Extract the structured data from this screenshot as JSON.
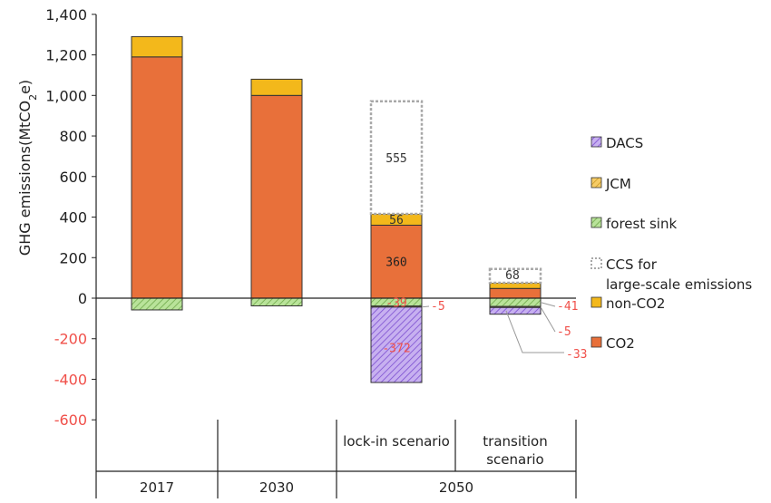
{
  "chart_data": {
    "type": "bar",
    "stacked": true,
    "ylabel": "GHG emissions(MtCO",
    "ylabel_sub": "2",
    "ylabel_end": "e)",
    "ylim": [
      -600,
      1400
    ],
    "yticks": [
      -600,
      -400,
      -200,
      0,
      200,
      400,
      600,
      800,
      1000,
      1200,
      1400
    ],
    "ytick_labels": [
      "-600",
      "-400",
      "-200",
      "0",
      "200",
      "400",
      "600",
      "800",
      "1,000",
      "1,200",
      "1,400"
    ],
    "columns": [
      {
        "key": "2017",
        "year": "2017",
        "scenario": ""
      },
      {
        "key": "2030",
        "year": "2030",
        "scenario": ""
      },
      {
        "key": "2050-lockin",
        "year": "2050",
        "scenario": "lock-in scenario"
      },
      {
        "key": "2050-transition",
        "year": "2050",
        "scenario": "transition scenario"
      }
    ],
    "year_labels": [
      "2017",
      "2030",
      "2050"
    ],
    "scenario_labels": [
      "lock-in scenario",
      "transition scenario"
    ],
    "series": [
      {
        "name": "CO2",
        "color": "#E8703A",
        "values": [
          1190,
          1000,
          360,
          48
        ]
      },
      {
        "name": "non-CO2",
        "color": "#F3B81B",
        "values": [
          100,
          80,
          56,
          28
        ]
      },
      {
        "name": "CCS for large-scale emissions",
        "color": "#ffffff",
        "outline": "#aaaaaa",
        "values": [
          0,
          0,
          555,
          68
        ]
      },
      {
        "name": "forest sink",
        "color": "#A6D97A",
        "values": [
          -58,
          -38,
          -39,
          -41
        ]
      },
      {
        "name": "JCM",
        "color": "#F3C14A",
        "values": [
          0,
          0,
          -5,
          -5
        ]
      },
      {
        "name": "DACS",
        "color": "#A17ADB",
        "values": [
          0,
          0,
          -372,
          -33
        ]
      }
    ],
    "data_labels": {
      "co2_lockin": "360",
      "nonco2_lockin": "56",
      "ccs_lockin": "555",
      "ccs_transition": "68",
      "forest_lockin": "-39",
      "jcm_lockin": "-5",
      "dacs_lockin": "-372",
      "forest_transition": "-41",
      "jcm_transition": "-5",
      "dacs_transition": "-33"
    },
    "legend": [
      "DACS",
      "JCM",
      "forest sink",
      "CCS for large-scale emissions",
      "non-CO2",
      "CO2"
    ],
    "legend_placement": "right",
    "negative_label_color": "#F0504A"
  }
}
